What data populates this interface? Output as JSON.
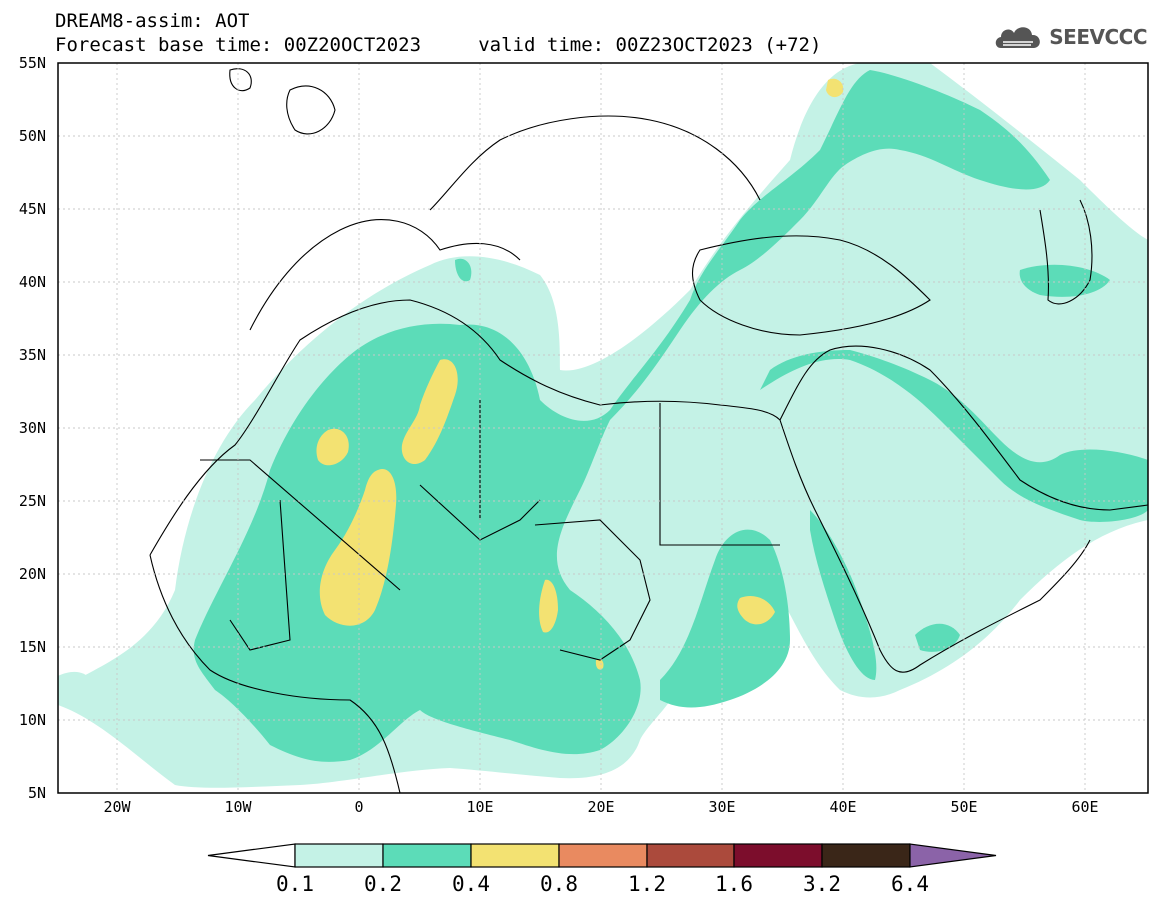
{
  "header": {
    "line1": "DREAM8-assim: AOT",
    "line2": "Forecast base time: 00Z20OCT2023     valid time: 00Z23OCT2023 (+72)"
  },
  "logo": {
    "text": "SEEVCCC",
    "icon": "cloud-icon"
  },
  "map": {
    "lon_range": [
      -25,
      65
    ],
    "lat_range": [
      5,
      55
    ],
    "lat_labels": [
      "55N",
      "50N",
      "45N",
      "40N",
      "35N",
      "30N",
      "25N",
      "20N",
      "15N",
      "10N",
      "5N"
    ],
    "lon_labels": [
      "20W",
      "10W",
      "0",
      "10E",
      "20E",
      "30E",
      "40E",
      "50E",
      "60E"
    ]
  },
  "colorbar": {
    "labels": [
      "0.1",
      "0.2",
      "0.4",
      "0.8",
      "1.2",
      "1.6",
      "3.2",
      "6.4"
    ],
    "colors": [
      "#ffffff",
      "#c4f2e6",
      "#5cdcb8",
      "#f3e272",
      "#e98a60",
      "#ab4a3c",
      "#7c0d2c",
      "#3a2618",
      "#8b63a8"
    ]
  }
}
